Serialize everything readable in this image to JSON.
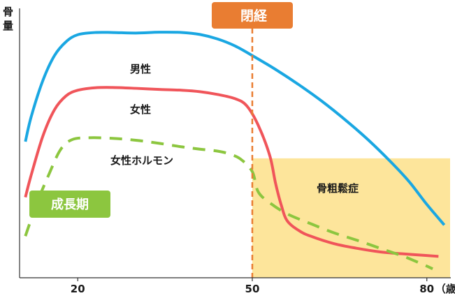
{
  "chart_data": {
    "type": "line",
    "ylabel": "骨量",
    "x_unit": "（歳）",
    "x_ticks": [
      20,
      50,
      80
    ],
    "xlim": [
      10,
      84
    ],
    "ylim": [
      0,
      100
    ],
    "grid": false,
    "series": [
      {
        "name": "男性",
        "style": "solid",
        "color": "#1aa7e2",
        "points": [
          [
            11,
            49
          ],
          [
            12,
            58
          ],
          [
            14,
            71
          ],
          [
            16,
            80
          ],
          [
            18,
            85
          ],
          [
            20,
            87.5
          ],
          [
            23,
            88.3
          ],
          [
            26,
            88.3
          ],
          [
            30,
            88.1
          ],
          [
            34,
            88.4
          ],
          [
            38,
            88.3
          ],
          [
            41,
            87.6
          ],
          [
            44,
            86
          ],
          [
            47,
            83.5
          ],
          [
            50,
            80
          ],
          [
            54,
            75
          ],
          [
            58,
            69.5
          ],
          [
            62,
            63.5
          ],
          [
            66,
            56.8
          ],
          [
            70,
            49.5
          ],
          [
            74,
            41.3
          ],
          [
            77,
            34.5
          ],
          [
            80,
            26.4
          ],
          [
            83,
            19
          ]
        ]
      },
      {
        "name": "女性",
        "style": "solid",
        "color": "#f0555a",
        "points": [
          [
            11,
            29
          ],
          [
            12,
            37
          ],
          [
            14,
            51
          ],
          [
            16,
            60.5
          ],
          [
            18,
            65.5
          ],
          [
            20,
            67.5
          ],
          [
            23,
            68.4
          ],
          [
            26,
            68.5
          ],
          [
            30,
            68.2
          ],
          [
            34,
            67.8
          ],
          [
            38,
            67.5
          ],
          [
            41,
            67
          ],
          [
            44,
            66
          ],
          [
            47,
            64.5
          ],
          [
            49,
            62
          ],
          [
            51,
            55
          ],
          [
            53,
            44
          ],
          [
            54,
            34
          ],
          [
            55,
            26
          ],
          [
            56,
            20.5
          ],
          [
            58,
            17
          ],
          [
            60,
            15
          ],
          [
            64,
            12.3
          ],
          [
            68,
            10.6
          ],
          [
            72,
            9.3
          ],
          [
            76,
            8.6
          ],
          [
            80,
            8
          ],
          [
            82,
            7.7
          ]
        ]
      },
      {
        "name": "女性ホルモン",
        "style": "dashed",
        "color": "#8cc63f",
        "points": [
          [
            11,
            15
          ],
          [
            13,
            27
          ],
          [
            15,
            37
          ],
          [
            17,
            46
          ],
          [
            19,
            49.7
          ],
          [
            22,
            50.4
          ],
          [
            26,
            50.2
          ],
          [
            30,
            49.5
          ],
          [
            34,
            48.4
          ],
          [
            38,
            47.1
          ],
          [
            41,
            46.3
          ],
          [
            44,
            45.6
          ],
          [
            46,
            44.6
          ],
          [
            48,
            42.7
          ],
          [
            50,
            38.2
          ],
          [
            51,
            31
          ],
          [
            53,
            27
          ],
          [
            56,
            23
          ],
          [
            60,
            19.5
          ],
          [
            64,
            16.2
          ],
          [
            68,
            13.5
          ],
          [
            72,
            10.6
          ],
          [
            76,
            7.7
          ],
          [
            78,
            6
          ],
          [
            80,
            4.2
          ],
          [
            81,
            3.2
          ]
        ]
      }
    ],
    "annotations": {
      "menopause_x": 50,
      "menopause_label": "閉経",
      "growth_label": "成長期",
      "osteoporosis_label": "骨粗鬆症",
      "osteoporosis_region": {
        "x": [
          50,
          84
        ],
        "y": [
          0,
          43
        ]
      }
    },
    "colors": {
      "menopause": "#e97d32",
      "growth": "#8cc63f",
      "osteoporosis_fill": "#fde59b"
    }
  }
}
